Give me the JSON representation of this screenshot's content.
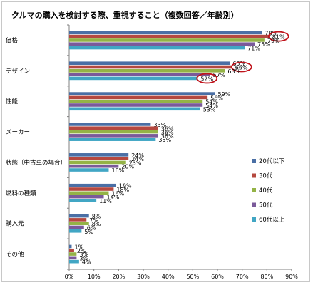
{
  "chart_data": {
    "type": "bar",
    "orientation": "horizontal",
    "title": "クルマの購入を検討する際、重視すること（複数回答／年齢別）",
    "categories": [
      "価格",
      "デザイン",
      "性能",
      "メーカー",
      "状態（中古車の場合）",
      "燃料の種類",
      "購入元",
      "その他"
    ],
    "series": [
      {
        "name": "20代以下",
        "color": "#4a6fa5",
        "values": [
          78,
          65,
          59,
          33,
          24,
          19,
          8,
          1
        ]
      },
      {
        "name": "30代",
        "color": "#b5483f",
        "values": [
          81,
          66,
          56,
          36,
          24,
          18,
          7,
          2
        ]
      },
      {
        "name": "40代",
        "color": "#94b346",
        "values": [
          79,
          63,
          54,
          36,
          23,
          16,
          8,
          3
        ]
      },
      {
        "name": "50代",
        "color": "#7a5a9a",
        "values": [
          75,
          57,
          54,
          36,
          20,
          14,
          6,
          3
        ]
      },
      {
        "name": "60代以上",
        "color": "#41a6c4",
        "values": [
          71,
          52,
          53,
          35,
          16,
          11,
          5,
          4
        ]
      }
    ],
    "xlim": [
      0,
      90
    ],
    "xticks": [
      0,
      10,
      20,
      30,
      40,
      50,
      60,
      70,
      80,
      90
    ],
    "tick_suffix": "%",
    "grid": false,
    "legend": "right",
    "highlights": [
      {
        "category": "価格",
        "series": "30代"
      },
      {
        "category": "デザイン",
        "series": "30代"
      },
      {
        "category": "デザイン",
        "series": "60代以上"
      }
    ],
    "highlight_color": "#c0141c"
  }
}
